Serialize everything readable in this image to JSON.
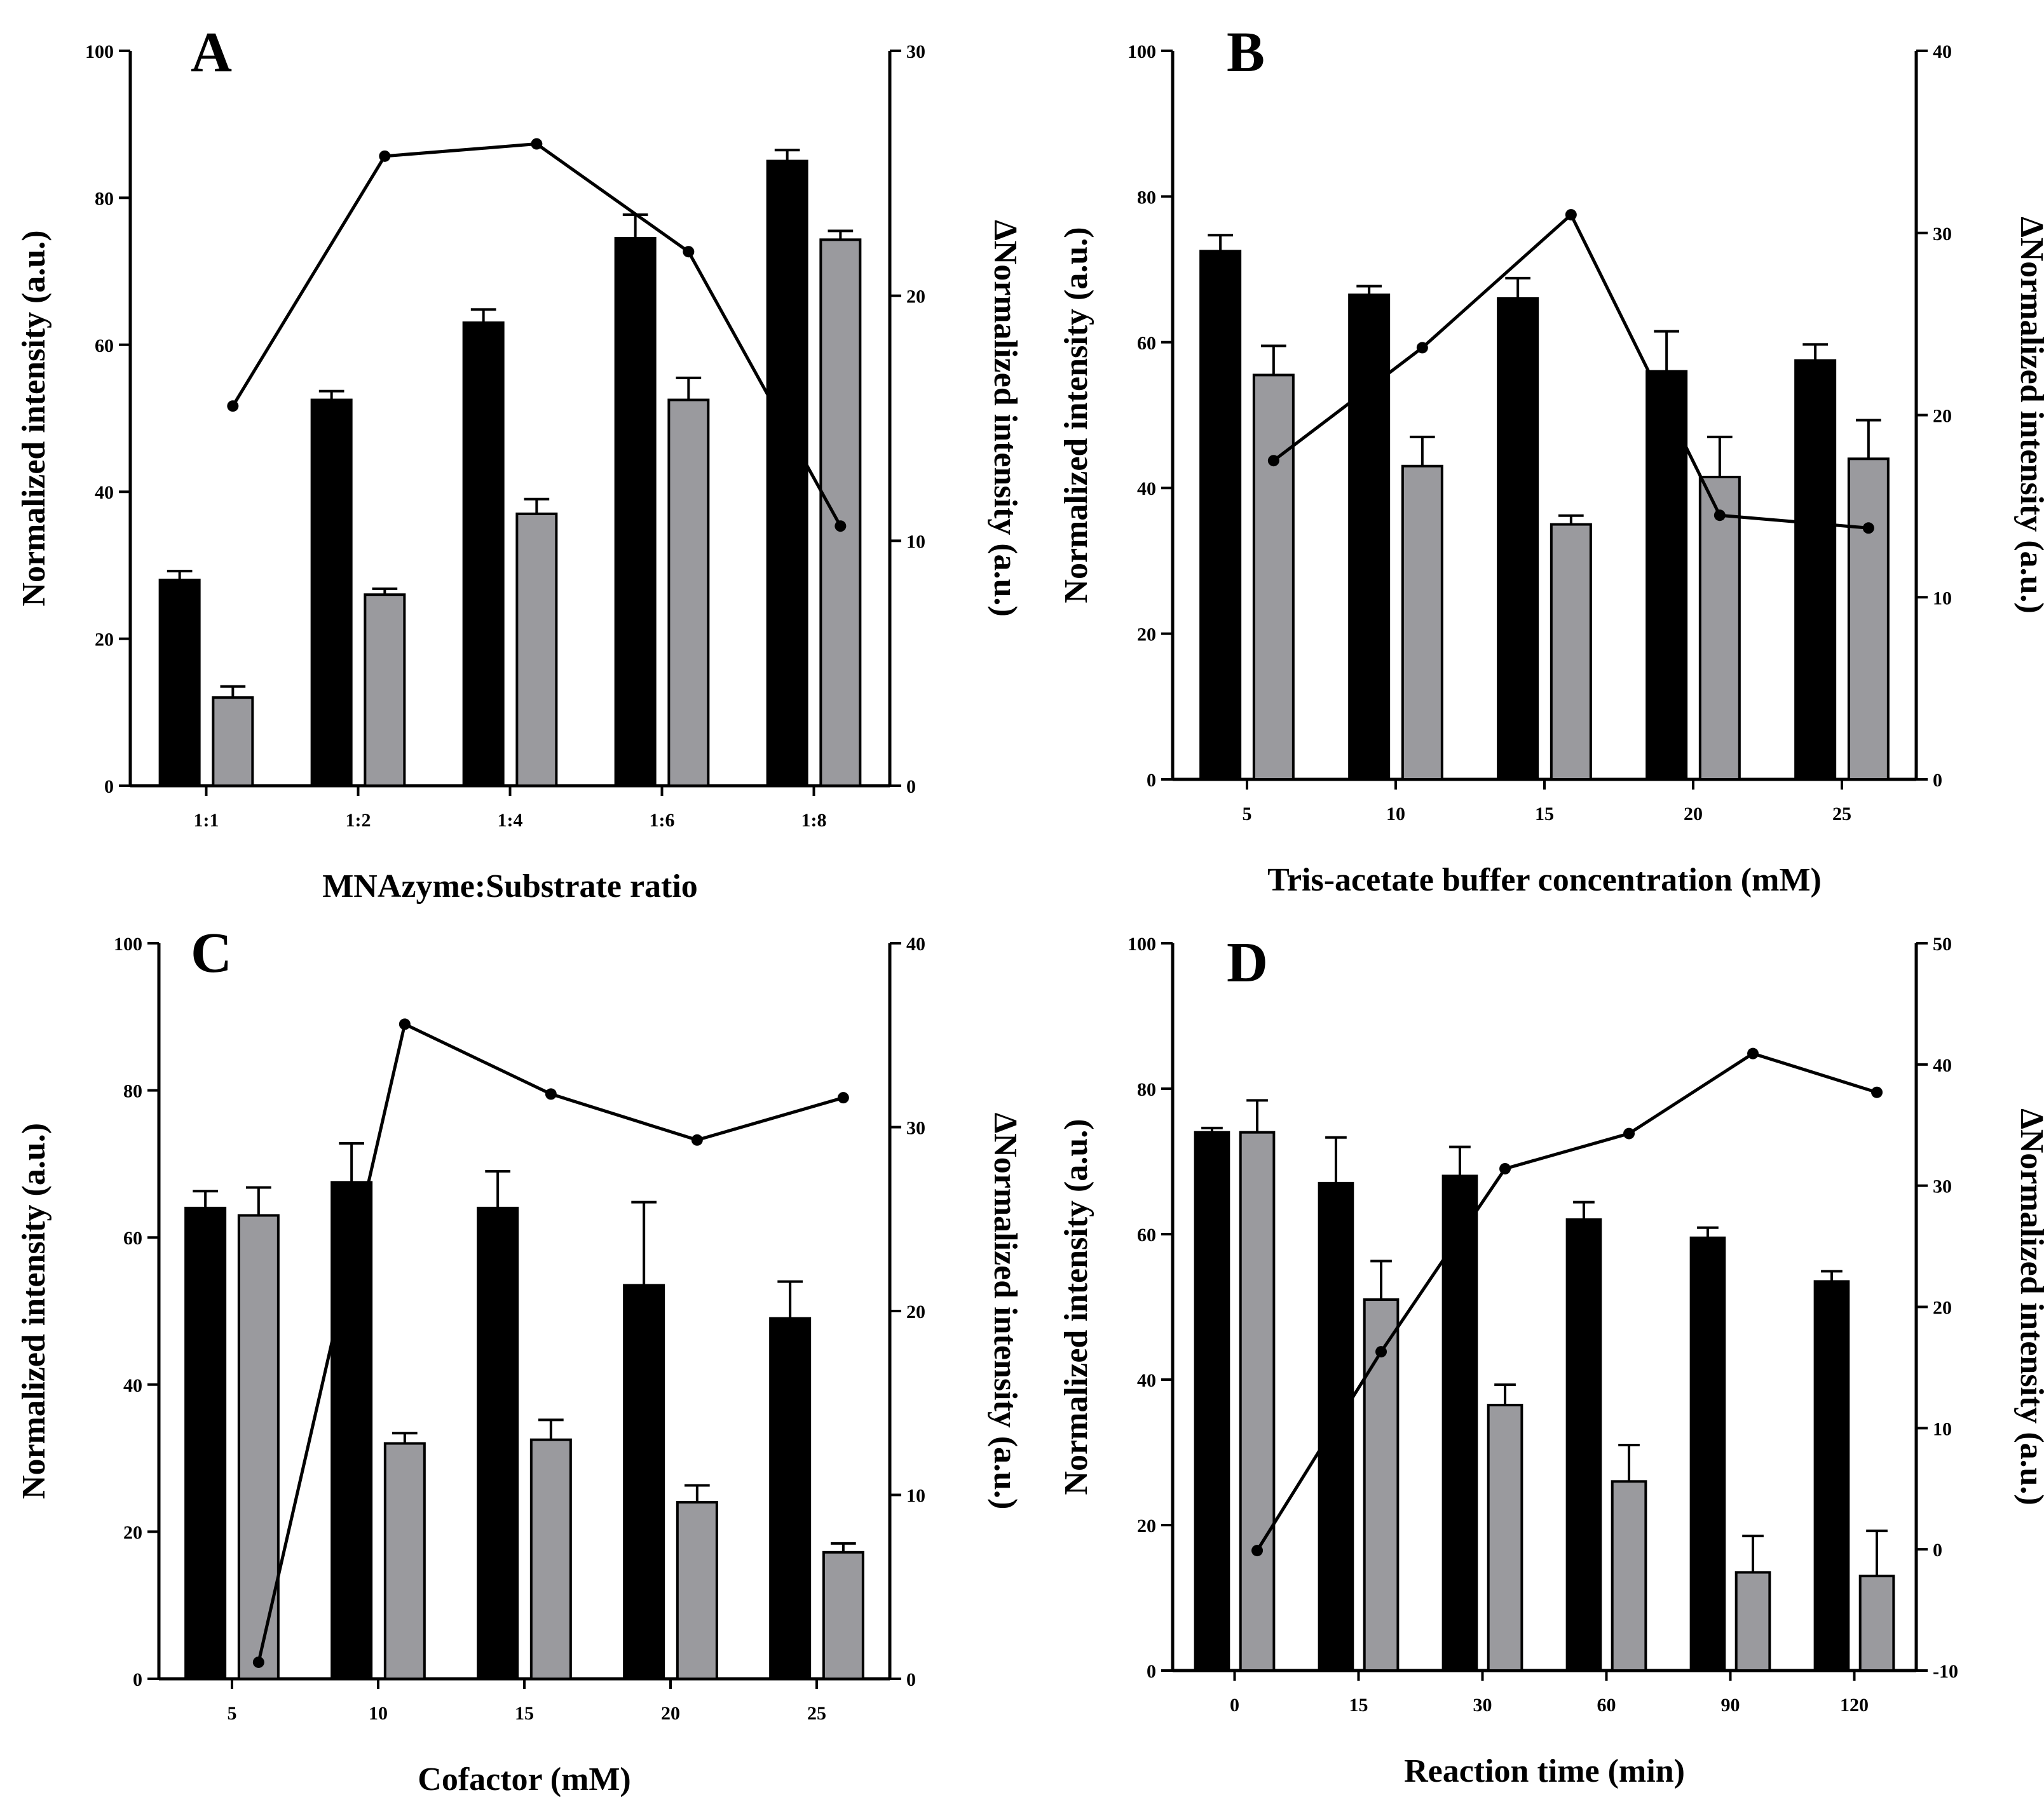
{
  "colors": {
    "bar_primary": "#000000",
    "bar_secondary": "#9a9a9e",
    "line": "#000000",
    "background": "#ffffff"
  },
  "chart_data": [
    {
      "panel": "A",
      "type": "bar",
      "categories": [
        "1:1",
        "1:2",
        "1:4",
        "1:6",
        "1:8"
      ],
      "xlabel": "MNAzyme:Substrate ratio",
      "ylabel": "Normalized intensity (a.u.)",
      "y2label": "ΔNormalized intensity (a.u.)",
      "ylim": [
        0,
        100
      ],
      "yticks": [
        0,
        20,
        40,
        60,
        80,
        100
      ],
      "y2lim": [
        0,
        30
      ],
      "y2ticks": [
        0,
        10,
        20,
        30
      ],
      "series": [
        {
          "values": [
            28,
            52.5,
            63,
            74.5,
            85
          ],
          "errors": [
            1.2,
            1.2,
            1.8,
            3.2,
            1.5
          ],
          "axis": "left",
          "kind": "bar"
        },
        {
          "values": [
            12,
            26,
            37,
            52.5,
            74.3
          ],
          "errors": [
            1.5,
            0.8,
            2,
            3,
            1.2
          ],
          "axis": "left",
          "kind": "bar"
        },
        {
          "values": [
            15.5,
            25.7,
            26.2,
            21.8,
            10.6
          ],
          "axis": "right",
          "kind": "line"
        }
      ]
    },
    {
      "panel": "B",
      "type": "bar",
      "categories": [
        "5",
        "10",
        "15",
        "20",
        "25"
      ],
      "xlabel": "Tris-acetate buffer concentration (mM)",
      "ylabel": "Normalized intensity (a.u.)",
      "y2label": "ΔNormalized intensity (a.u.)",
      "ylim": [
        0,
        100
      ],
      "yticks": [
        0,
        20,
        40,
        60,
        80,
        100
      ],
      "y2lim": [
        0,
        40
      ],
      "y2ticks": [
        0,
        10,
        20,
        30,
        40
      ],
      "series": [
        {
          "values": [
            72.5,
            66.5,
            66,
            56,
            57.5
          ],
          "errors": [
            2.2,
            1.2,
            2.8,
            5.5,
            2.2
          ],
          "axis": "left",
          "kind": "bar"
        },
        {
          "values": [
            55.5,
            43,
            35,
            41.5,
            44
          ],
          "errors": [
            4,
            4,
            1.2,
            5.5,
            5.3
          ],
          "axis": "left",
          "kind": "bar"
        },
        {
          "values": [
            17.5,
            23.7,
            31,
            14.5,
            13.8
          ],
          "axis": "right",
          "kind": "line"
        }
      ]
    },
    {
      "panel": "C",
      "type": "bar",
      "categories": [
        "5",
        "10",
        "15",
        "20",
        "25"
      ],
      "xlabel": "Cofactor (mM)",
      "ylabel": "Normalized intensity (a.u.)",
      "y2label": "ΔNormalized intensity (a.u.)",
      "ylim": [
        0,
        100
      ],
      "yticks": [
        0,
        20,
        40,
        60,
        80,
        100
      ],
      "y2lim": [
        0,
        40
      ],
      "y2ticks": [
        0,
        10,
        20,
        30,
        40
      ],
      "series": [
        {
          "values": [
            64,
            67.5,
            64,
            53.5,
            49
          ],
          "errors": [
            2.3,
            5.3,
            5,
            11.3,
            5
          ],
          "axis": "left",
          "kind": "bar"
        },
        {
          "values": [
            63,
            32,
            32.5,
            24,
            17.2
          ],
          "errors": [
            3.8,
            1.4,
            2.7,
            2.3,
            1.2
          ],
          "axis": "left",
          "kind": "bar"
        },
        {
          "values": [
            0.9,
            35.6,
            31.8,
            29.3,
            31.6
          ],
          "axis": "right",
          "kind": "line"
        }
      ]
    },
    {
      "panel": "D",
      "type": "bar",
      "categories": [
        "0",
        "15",
        "30",
        "60",
        "90",
        "120"
      ],
      "xlabel": "Reaction time (min)",
      "ylabel": "Normalized intensity (a.u.)",
      "y2label": "ΔNormalized intensity (a.u.)",
      "ylim": [
        0,
        100
      ],
      "yticks": [
        0,
        20,
        40,
        60,
        80,
        100
      ],
      "y2lim": [
        -10,
        50
      ],
      "y2ticks": [
        -10,
        0,
        10,
        20,
        30,
        40,
        50
      ],
      "series": [
        {
          "values": [
            74,
            67,
            68,
            62,
            59.5,
            53.5
          ],
          "errors": [
            0.6,
            6.3,
            4,
            2.4,
            1.4,
            1.4
          ],
          "axis": "left",
          "kind": "bar"
        },
        {
          "values": [
            74,
            51,
            36.5,
            26,
            13.5,
            13
          ],
          "errors": [
            4.4,
            5.3,
            2.8,
            5,
            5,
            6.2
          ],
          "axis": "left",
          "kind": "bar"
        },
        {
          "values": [
            -0.1,
            16.3,
            31.4,
            34.3,
            40.9,
            37.7
          ],
          "axis": "right",
          "kind": "line"
        }
      ]
    }
  ]
}
